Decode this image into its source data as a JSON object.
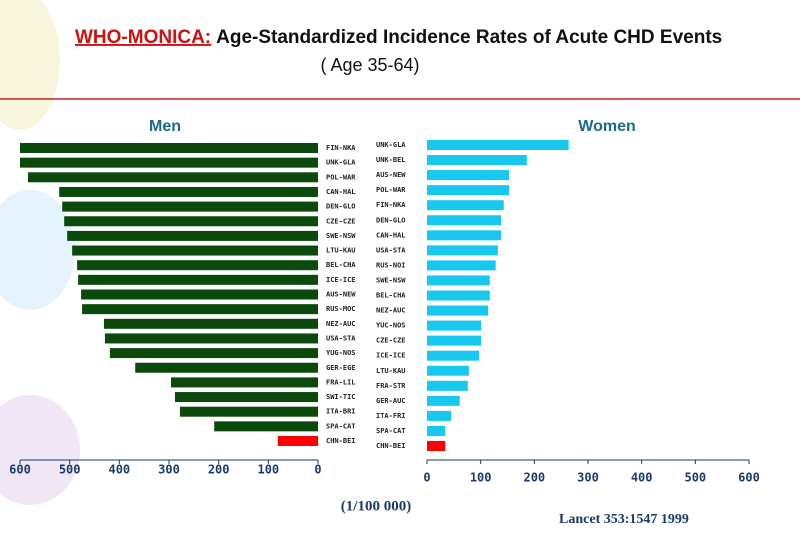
{
  "title_prefix": "WHO-MONICA:",
  "title": "Age-Standardized Incidence Rates of Acute CHD Events",
  "subtitle": "( Age 35-64)",
  "unit_label": "(1/100 000)",
  "source": "Lancet   353:1547 1999",
  "chart_data": [
    {
      "type": "bar",
      "title": "Men",
      "reversed": true,
      "categories": [
        "FIN-NKA",
        "UNK-GLA",
        "POL-WAR",
        "CAN-HAL",
        "DEN-GLO",
        "CZE-CZE",
        "SWE-NSW",
        "LTU-KAU",
        "BEL-CHA",
        "ICE-ICE",
        "AUS-NEW",
        "RUS-MOC",
        "NEZ-AUC",
        "USA-STA",
        "YUG-NOS",
        "GER-EGE",
        "FRA-LIL",
        "SWI-TIC",
        "ITA-BRI",
        "SPA-CAT",
        "CHN-BEI"
      ],
      "values": [
        600,
        600,
        584,
        521,
        515,
        511,
        505,
        495,
        485,
        483,
        477,
        475,
        431,
        429,
        419,
        368,
        296,
        288,
        278,
        209,
        81
      ],
      "colors": [
        "#0b4a0b",
        "#0b4a0b",
        "#0b4a0b",
        "#0b4a0b",
        "#0b4a0b",
        "#0b4a0b",
        "#0b4a0b",
        "#0b4a0b",
        "#0b4a0b",
        "#0b4a0b",
        "#0b4a0b",
        "#0b4a0b",
        "#0b4a0b",
        "#0b4a0b",
        "#0b4a0b",
        "#0b4a0b",
        "#0b4a0b",
        "#0b4a0b",
        "#0b4a0b",
        "#0b4a0b",
        "#ff0000"
      ],
      "xlim": [
        0,
        600
      ],
      "xticks": [
        600,
        500,
        400,
        300,
        200,
        100,
        0
      ]
    },
    {
      "type": "bar",
      "title": "Women",
      "reversed": false,
      "categories": [
        "UNK-GLA",
        "UNK-BEL",
        "AUS-NEW",
        "POL-WAR",
        "FIN-NKA",
        "DEN-GLO",
        "CAN-HAL",
        "USA-STA",
        "RUS-NOI",
        "SWE-NSW",
        "BEL-CHA",
        "NEZ-AUC",
        "YUC-NOS",
        "CZE-CZE",
        "ICE-ICE",
        "LTU-KAU",
        "FRA-STR",
        "GER-AUC",
        "ITA-FRI",
        "SPA-CAT",
        "CHN-BEI"
      ],
      "values": [
        264,
        186,
        153,
        153,
        143,
        138,
        138,
        132,
        128,
        117,
        117,
        114,
        101,
        101,
        97,
        78,
        76,
        61,
        45,
        34,
        34
      ],
      "colors": [
        "#18c8ee",
        "#18c8ee",
        "#18c8ee",
        "#18c8ee",
        "#18c8ee",
        "#18c8ee",
        "#18c8ee",
        "#18c8ee",
        "#18c8ee",
        "#18c8ee",
        "#18c8ee",
        "#18c8ee",
        "#18c8ee",
        "#18c8ee",
        "#18c8ee",
        "#18c8ee",
        "#18c8ee",
        "#18c8ee",
        "#18c8ee",
        "#18c8ee",
        "#ff0000"
      ],
      "xlim": [
        0,
        600
      ],
      "xticks": [
        0,
        100,
        200,
        300,
        400,
        500,
        600
      ]
    }
  ]
}
